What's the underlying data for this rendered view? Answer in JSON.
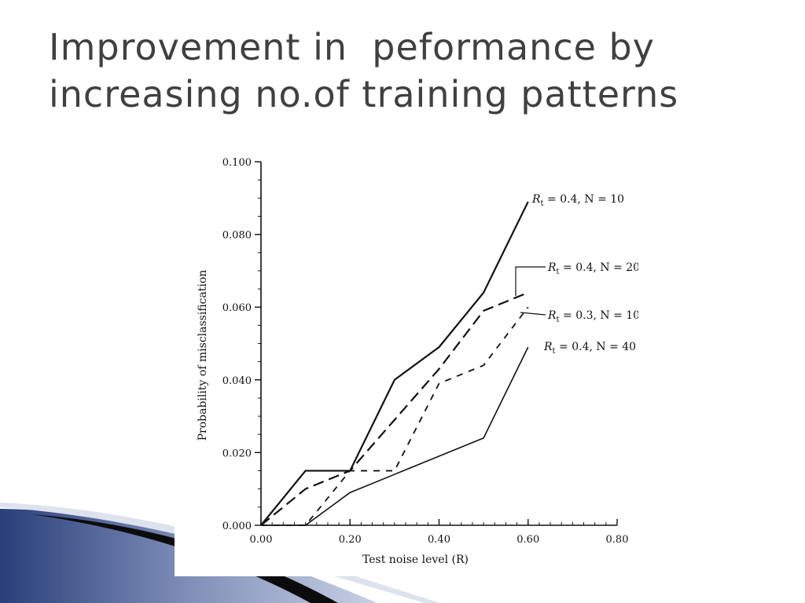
{
  "slide": {
    "title_line1": "Improvement in  peformance by",
    "title_line2": "increasing no.of training patterns",
    "title_color": "#404040",
    "decoration": "blue-gradient-swoosh"
  },
  "chart_data": {
    "type": "line",
    "xlabel": "Test noise level (R)",
    "ylabel": "Probability of misclassification",
    "xlim": [
      0.0,
      0.8
    ],
    "ylim": [
      0.0,
      0.1
    ],
    "x_ticks": [
      "0.00",
      "0.20",
      "0.40",
      "0.60",
      "0.80"
    ],
    "y_ticks": [
      "0.000",
      "0.020",
      "0.040",
      "0.060",
      "0.080",
      "0.100"
    ],
    "grid": false,
    "legend_placement": "labels at right end of lines",
    "series": [
      {
        "name": "R_t = 0.4, N = 10",
        "style": "solid",
        "x": [
          0.0,
          0.1,
          0.2,
          0.3,
          0.4,
          0.5,
          0.6
        ],
        "y": [
          0.0,
          0.015,
          0.015,
          0.04,
          0.049,
          0.064,
          0.089
        ]
      },
      {
        "name": "R_t = 0.4, N = 20",
        "style": "long-dash",
        "x": [
          0.0,
          0.1,
          0.2,
          0.3,
          0.4,
          0.5,
          0.6
        ],
        "y": [
          0.0,
          0.01,
          0.015,
          0.029,
          0.043,
          0.059,
          0.064
        ]
      },
      {
        "name": "R_t = 0.3, N = 10",
        "style": "short-dash",
        "x": [
          0.0,
          0.1,
          0.2,
          0.3,
          0.4,
          0.5,
          0.6
        ],
        "y": [
          0.0,
          0.0,
          0.015,
          0.015,
          0.039,
          0.044,
          0.06
        ]
      },
      {
        "name": "R_t = 0.4, N = 40",
        "style": "thin-solid",
        "x": [
          0.0,
          0.1,
          0.2,
          0.3,
          0.4,
          0.5,
          0.6
        ],
        "y": [
          0.0,
          0.0,
          0.009,
          0.014,
          0.019,
          0.024,
          0.049
        ]
      }
    ],
    "legend": [
      {
        "prefix": "R",
        "sub": "t",
        "suffix": " = 0.4, N = 10"
      },
      {
        "prefix": "R",
        "sub": "t",
        "suffix": " = 0.4, N = 20"
      },
      {
        "prefix": "R",
        "sub": "t",
        "suffix": " = 0.3, N = 10"
      },
      {
        "prefix": "R",
        "sub": "t",
        "suffix": " = 0.4, N = 40"
      }
    ]
  }
}
